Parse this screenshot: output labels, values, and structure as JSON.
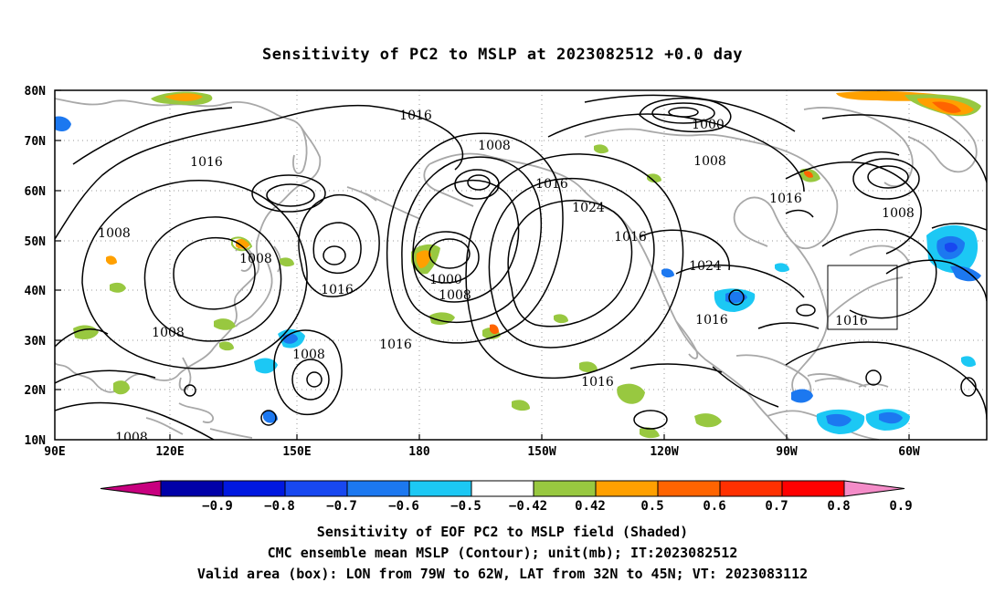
{
  "title": "Sensitivity of PC2 to MSLP at 2023082512 +0.0 day",
  "map": {
    "lat_labels": [
      "80N",
      "70N",
      "60N",
      "50N",
      "40N",
      "30N",
      "20N",
      "10N"
    ],
    "lon_labels": [
      "90E",
      "120E",
      "150E",
      "180",
      "150W",
      "120W",
      "90W",
      "60W"
    ],
    "contour_labels": [
      {
        "text": "1016"
      },
      {
        "text": "1016"
      },
      {
        "text": "1008"
      },
      {
        "text": "1000"
      },
      {
        "text": "1008"
      },
      {
        "text": "1016"
      },
      {
        "text": "1024"
      },
      {
        "text": "1008"
      },
      {
        "text": "1008"
      },
      {
        "text": "1016"
      },
      {
        "text": "1016"
      },
      {
        "text": "1000"
      },
      {
        "text": "1008"
      },
      {
        "text": "1016"
      },
      {
        "text": "1016"
      },
      {
        "text": "1024"
      },
      {
        "text": "1016"
      },
      {
        "text": "1016"
      },
      {
        "text": "1008"
      },
      {
        "text": "1008"
      },
      {
        "text": "1008"
      }
    ],
    "box_label": "1016",
    "land_color": "#a8a8a8",
    "contour_color": "#000000",
    "grid_color": "#9a9a9a"
  },
  "colorbar": {
    "tick_labels": [
      "−0.9",
      "−0.8",
      "−0.7",
      "−0.6",
      "−0.5",
      "−0.42",
      "0.42",
      "0.5",
      "0.6",
      "0.7",
      "0.8",
      "0.9"
    ],
    "colors": [
      "#c8007f",
      "#0000a8",
      "#0018e0",
      "#1848f0",
      "#1c78f0",
      "#1cc8f4",
      "#ffffff",
      "#98c840",
      "#ffa000",
      "#ff6400",
      "#ff3000",
      "#ff0000",
      "#f48cc8"
    ]
  },
  "footer": {
    "line1": "Sensitivity of EOF PC2 to MSLP field (Shaded)",
    "line2": "CMC ensemble mean MSLP (Contour); unit(mb); IT:2023082512",
    "line3": "Valid area (box): LON from 79W to 62W, LAT from 32N to 45N; VT: 2023083112"
  }
}
